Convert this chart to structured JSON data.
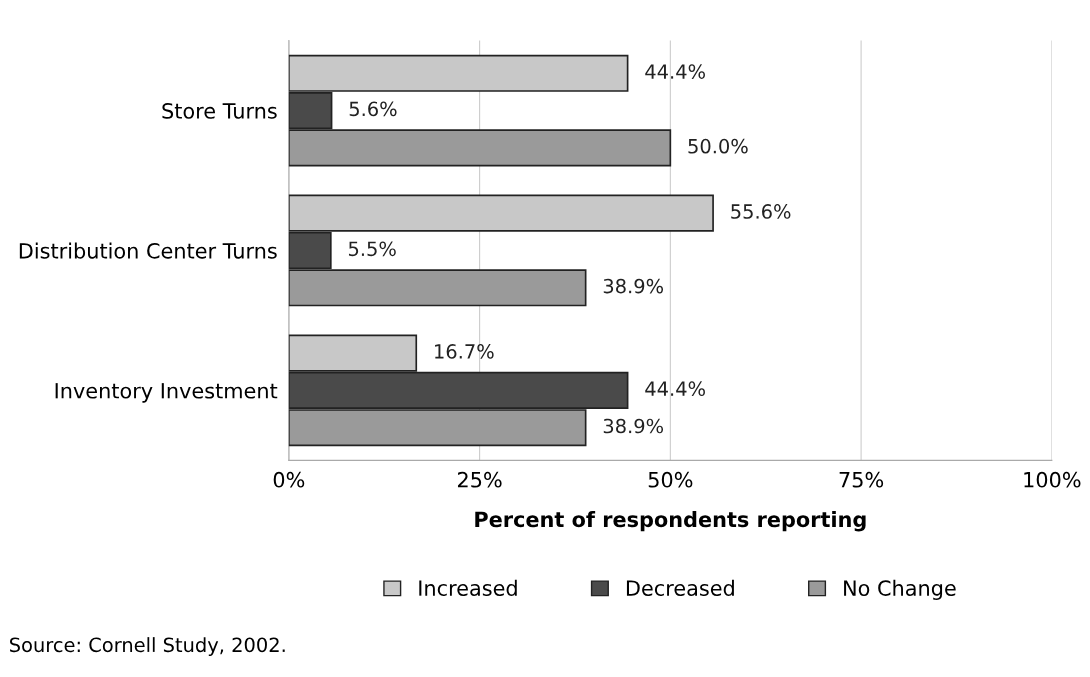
{
  "chart_data": {
    "type": "bar",
    "orientation": "horizontal",
    "xlabel": "Percent of respondents reporting",
    "categories": [
      "Store Turns",
      "Distribution Center Turns",
      "Inventory Investment"
    ],
    "series": [
      {
        "name": "Increased",
        "color": "#c8c8c8",
        "values": [
          44.4,
          55.6,
          16.7
        ],
        "value_labels": [
          "44.4%",
          "55.6%",
          "16.7%"
        ]
      },
      {
        "name": "Decreased",
        "color": "#4a4a4a",
        "values": [
          5.6,
          5.5,
          44.4
        ],
        "value_labels": [
          "5.6%",
          "5.5%",
          "44.4%"
        ]
      },
      {
        "name": "No Change",
        "color": "#9a9a9a",
        "values": [
          50.0,
          38.9,
          38.9
        ],
        "value_labels": [
          "50.0%",
          "38.9%",
          "38.9%"
        ]
      }
    ],
    "xlim": [
      0,
      100
    ],
    "xticks": [
      {
        "value": 0,
        "label": "0%"
      },
      {
        "value": 25,
        "label": "25%"
      },
      {
        "value": 50,
        "label": "50%"
      },
      {
        "value": 75,
        "label": "75%"
      },
      {
        "value": 100,
        "label": "100%"
      }
    ],
    "grid": "x",
    "legend": "bottom",
    "annotations": [
      "Source: Cornell Study, 2002."
    ]
  }
}
